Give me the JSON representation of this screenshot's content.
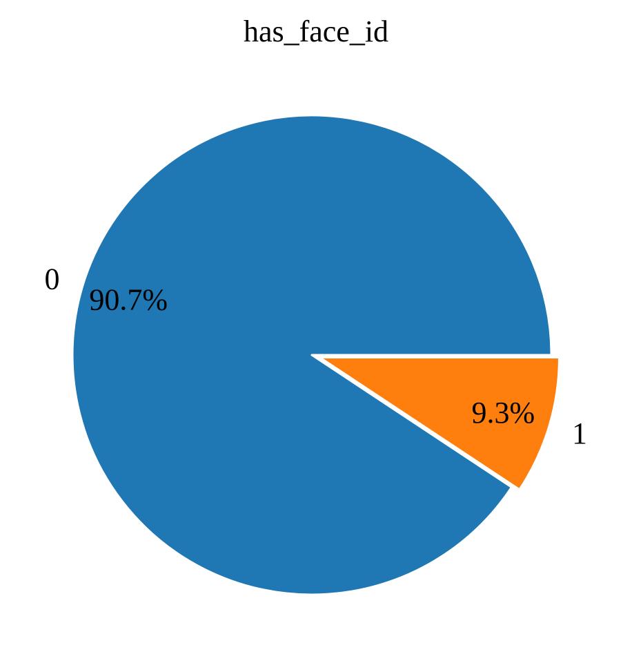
{
  "chart_data": {
    "type": "pie",
    "title": "has_face_id",
    "categories": [
      "0",
      "1"
    ],
    "values": [
      90.7,
      9.3
    ],
    "value_labels": [
      "90.7%",
      "9.3%"
    ],
    "colors": [
      "#1f77b4",
      "#ff7f0e"
    ],
    "exploded": [
      false,
      true
    ]
  }
}
